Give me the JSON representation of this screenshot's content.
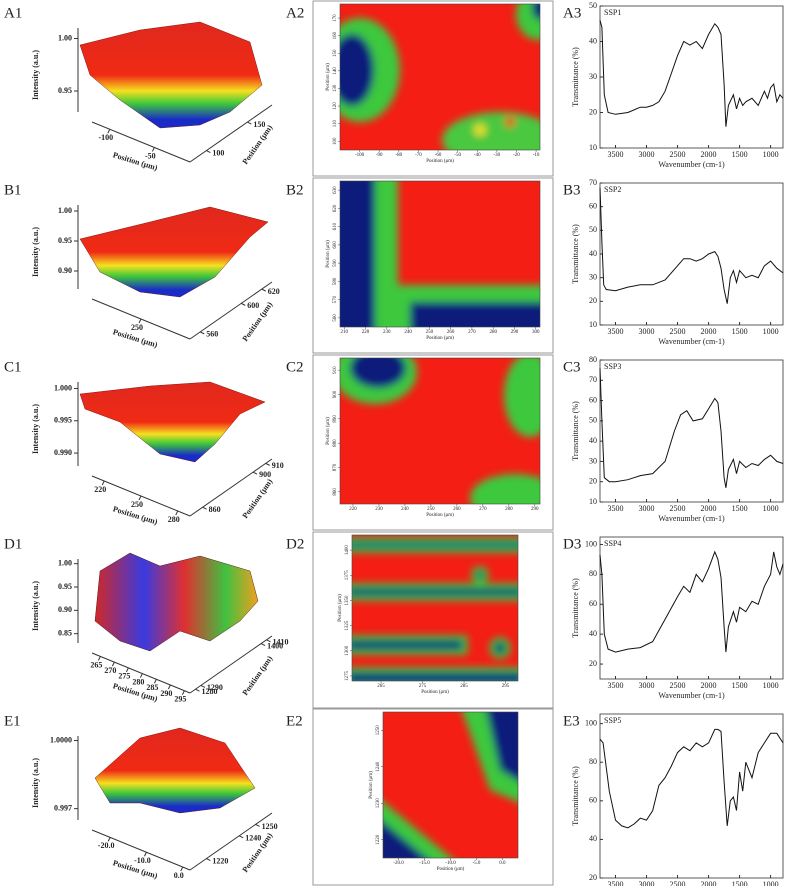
{
  "chart_data": [
    {
      "type": "surface",
      "label": "A1",
      "zlabel": "Intensity (a.u.)",
      "xlabel": "Position (μm)",
      "ylabel": "Position (μm)",
      "zlim": [
        0.93,
        1.01
      ],
      "zticks": [
        0.95,
        {
          "value": 1,
          "label": "1.00"
        }
      ],
      "xlim": [
        -120,
        -10
      ],
      "xticks": [
        -100,
        -50
      ],
      "ylim": [
        80,
        180
      ],
      "yticks": [
        100,
        150
      ]
    },
    {
      "type": "heatmap",
      "label": "A2",
      "xlabel": "Position (μm)",
      "ylabel": "Position (μm)",
      "xlim": [
        -110,
        -8
      ],
      "xticks": [
        -100,
        -90,
        -80,
        -70,
        -60,
        -50,
        -40,
        -30,
        -20,
        -10
      ],
      "ylim": [
        95,
        178
      ],
      "yticks": [
        100,
        110,
        120,
        130,
        140,
        150,
        160,
        170
      ]
    },
    {
      "type": "line",
      "label": "A3",
      "title": "SSP1",
      "xlabel": "Wavenumber (cm-1)",
      "ylabel": "Transmittance (%)",
      "xlim": [
        3750,
        800
      ],
      "xticks": [
        3500,
        3000,
        2500,
        2000,
        1500,
        1000
      ],
      "ylim": [
        10,
        50
      ],
      "yticks": [
        10,
        20,
        30,
        40,
        50
      ],
      "x": [
        3750,
        3720,
        3680,
        3620,
        3500,
        3300,
        3100,
        3000,
        2900,
        2800,
        2700,
        2600,
        2500,
        2400,
        2300,
        2200,
        2100,
        2000,
        1900,
        1850,
        1800,
        1750,
        1720,
        1680,
        1600,
        1550,
        1500,
        1450,
        1400,
        1300,
        1200,
        1100,
        1050,
        1000,
        950,
        900,
        850,
        800
      ],
      "values": [
        46,
        44,
        25,
        20,
        19.5,
        20,
        21.5,
        21.5,
        22,
        23,
        26,
        31,
        36,
        40,
        39,
        40,
        38,
        42,
        45,
        44,
        42,
        28,
        16,
        22,
        25,
        21,
        24,
        22,
        23,
        24,
        22,
        26,
        24,
        27,
        28,
        23,
        25,
        24
      ]
    },
    {
      "type": "surface",
      "label": "B1",
      "zlabel": "Intensity (a.u.)",
      "xlabel": "Position (μm)",
      "ylabel": "Position (μm)",
      "zlim": [
        0.87,
        1.01
      ],
      "zticks": [
        {
          "value": 0.9,
          "label": "0.90"
        },
        0.95,
        {
          "value": 1,
          "label": "1.00"
        }
      ],
      "xlim": [
        200,
        300
      ],
      "xticks": [
        250
      ],
      "ylim": [
        550,
        630
      ],
      "yticks": [
        560,
        600,
        620
      ]
    },
    {
      "type": "heatmap",
      "label": "B2",
      "xlabel": "Position (μm)",
      "ylabel": "Position (μm)",
      "xlim": [
        208,
        302
      ],
      "xticks": [
        210,
        220,
        230,
        240,
        250,
        260,
        270,
        280,
        290,
        300
      ],
      "ylim": [
        555,
        635
      ],
      "yticks": [
        560,
        570,
        580,
        590,
        600,
        610,
        620,
        630
      ]
    },
    {
      "type": "line",
      "label": "B3",
      "title": "SSP2",
      "xlabel": "Wavenumber (cm-1)",
      "ylabel": "Transmittance (%)",
      "xlim": [
        3750,
        800
      ],
      "xticks": [
        3500,
        3000,
        2500,
        2000,
        1500,
        1000
      ],
      "ylim": [
        10,
        70
      ],
      "yticks": [
        10,
        20,
        30,
        40,
        50,
        60,
        70
      ],
      "x": [
        3750,
        3720,
        3690,
        3650,
        3500,
        3300,
        3100,
        2900,
        2700,
        2500,
        2400,
        2300,
        2200,
        2100,
        2000,
        1900,
        1850,
        1800,
        1750,
        1700,
        1650,
        1600,
        1550,
        1500,
        1400,
        1300,
        1200,
        1100,
        1000,
        900,
        800
      ],
      "values": [
        68,
        45,
        27,
        25,
        24.5,
        26,
        27,
        27,
        29,
        35,
        38,
        38,
        37,
        38,
        40,
        41,
        39,
        34,
        25,
        19,
        30,
        33,
        28,
        33,
        30,
        31,
        30,
        35,
        37,
        34,
        32
      ]
    },
    {
      "type": "surface",
      "label": "C1",
      "zlabel": "Intensity (a.u.)",
      "xlabel": "Position (μm)",
      "ylabel": "Position (μm)",
      "zlim": [
        0.988,
        1.001
      ],
      "zticks": [
        {
          "value": 0.99,
          "label": "0.990"
        },
        0.995,
        {
          "value": 1,
          "label": "1.000"
        }
      ],
      "xlim": [
        210,
        290
      ],
      "xticks": [
        220,
        250,
        280
      ],
      "ylim": [
        850,
        915
      ],
      "yticks": [
        860,
        900,
        910
      ]
    },
    {
      "type": "heatmap",
      "label": "C2",
      "xlabel": "Position (μm)",
      "ylabel": "Position (μm)",
      "xlim": [
        215,
        292
      ],
      "xticks": [
        220,
        230,
        240,
        250,
        260,
        270,
        280,
        290
      ],
      "ylim": [
        855,
        915
      ],
      "yticks": [
        860,
        870,
        880,
        890,
        900,
        910
      ]
    },
    {
      "type": "line",
      "label": "C3",
      "title": "SSP3",
      "xlabel": "Wavenumber (cm-1)",
      "ylabel": "Transmittance (%)",
      "xlim": [
        3750,
        800
      ],
      "xticks": [
        3500,
        3000,
        2500,
        2000,
        1500,
        1000
      ],
      "ylim": [
        10,
        80
      ],
      "yticks": [
        10,
        20,
        30,
        40,
        50,
        60,
        70,
        80
      ],
      "x": [
        3750,
        3720,
        3680,
        3600,
        3500,
        3300,
        3100,
        2900,
        2700,
        2550,
        2450,
        2350,
        2250,
        2100,
        2000,
        1900,
        1850,
        1800,
        1750,
        1720,
        1680,
        1600,
        1550,
        1500,
        1400,
        1300,
        1200,
        1100,
        1000,
        900,
        800
      ],
      "values": [
        76,
        50,
        22,
        20,
        20,
        21,
        23,
        24,
        30,
        45,
        53,
        55,
        50,
        51,
        56,
        61,
        59,
        45,
        22,
        17,
        26,
        31,
        24,
        30,
        27,
        29,
        28,
        31,
        33,
        30,
        29
      ]
    },
    {
      "type": "surface",
      "label": "D1",
      "zlabel": "Intensity (a.u.)",
      "xlabel": "Position (μm)",
      "ylabel": "Position (μm)",
      "zlim": [
        0.83,
        1.01
      ],
      "zticks": [
        0.85,
        {
          "value": 0.9,
          "label": "0.90"
        },
        0.95,
        {
          "value": 1,
          "label": "1.00"
        }
      ],
      "xlim": [
        262,
        297
      ],
      "xticks": [
        265,
        270,
        275,
        280,
        285,
        290,
        295
      ],
      "ylim": [
        1270,
        1420
      ],
      "yticks": [
        1280,
        1290,
        1400,
        1410
      ]
    },
    {
      "type": "heatmap",
      "label": "D2",
      "xlabel": "Position (μm)",
      "ylabel": "Position (μm)",
      "xlim": [
        258,
        298
      ],
      "xticks": [
        265,
        275,
        285,
        295
      ],
      "ylim": [
        1270,
        1415
      ],
      "yticks": [
        1275,
        1300,
        1325,
        1350,
        1375,
        1400
      ]
    },
    {
      "type": "line",
      "label": "D3",
      "title": "SSP4",
      "xlabel": "Wavenumber (cm-1)",
      "ylabel": "Transmittance (%)",
      "xlim": [
        3750,
        800
      ],
      "xticks": [
        3500,
        3000,
        2500,
        2000,
        1500,
        1000
      ],
      "ylim": [
        10,
        105
      ],
      "yticks": [
        20,
        40,
        60,
        80,
        100
      ],
      "x": [
        3750,
        3720,
        3680,
        3620,
        3500,
        3300,
        3100,
        2900,
        2700,
        2500,
        2400,
        2300,
        2200,
        2100,
        2000,
        1900,
        1850,
        1800,
        1750,
        1720,
        1680,
        1600,
        1550,
        1500,
        1400,
        1300,
        1200,
        1100,
        1000,
        950,
        900,
        850,
        800
      ],
      "values": [
        93,
        80,
        40,
        30,
        28,
        30,
        31,
        35,
        50,
        65,
        72,
        68,
        80,
        75,
        84,
        95,
        90,
        78,
        45,
        28,
        45,
        55,
        48,
        58,
        55,
        62,
        60,
        72,
        80,
        95,
        85,
        80,
        87
      ]
    },
    {
      "type": "surface",
      "label": "E1",
      "zlabel": "Intensity (a.u.)",
      "xlabel": "Position (μm)",
      "ylabel": "Position (μm)",
      "zlim": [
        0.9965,
        1.0002
      ],
      "zticks": [
        0.997,
        {
          "value": 1,
          "label": "1.0000"
        }
      ],
      "xlim": [
        -25,
        2
      ],
      "xticks": [
        {
          "value": -20,
          "label": "-20.0"
        },
        {
          "value": -10,
          "label": "-10.0"
        },
        {
          "value": 0,
          "label": "0.0"
        }
      ],
      "ylim": [
        1210,
        1260
      ],
      "yticks": [
        1220,
        1240,
        1250
      ]
    },
    {
      "type": "heatmap",
      "label": "E2",
      "xlabel": "Position (μm)",
      "ylabel": "Position (μm)",
      "xlim": [
        -23,
        3
      ],
      "xticks": [
        {
          "value": -20,
          "label": "-20.0"
        },
        {
          "value": -15,
          "label": "-15.0"
        },
        {
          "value": -10,
          "label": "-10.0"
        },
        {
          "value": -5,
          "label": "-5.0"
        },
        {
          "value": 0,
          "label": "0.0"
        }
      ],
      "ylim": [
        1215,
        1255
      ],
      "yticks": [
        1220,
        1230,
        1240,
        1250
      ]
    },
    {
      "type": "line",
      "label": "E3",
      "title": "SSP5",
      "xlabel": "Wavenumber (cm-1)",
      "ylabel": "Transmittance (%)",
      "xlim": [
        3750,
        800
      ],
      "xticks": [
        3500,
        3000,
        2500,
        2000,
        1500,
        1000
      ],
      "ylim": [
        20,
        105
      ],
      "yticks": [
        20,
        40,
        60,
        80,
        100
      ],
      "x": [
        3750,
        3700,
        3600,
        3500,
        3400,
        3300,
        3200,
        3100,
        3000,
        2900,
        2800,
        2700,
        2600,
        2500,
        2400,
        2300,
        2200,
        2100,
        2000,
        1900,
        1850,
        1800,
        1750,
        1700,
        1650,
        1600,
        1550,
        1500,
        1450,
        1400,
        1300,
        1200,
        1100,
        1000,
        900,
        800
      ],
      "values": [
        92,
        90,
        65,
        50,
        47,
        46,
        48,
        51,
        50,
        55,
        68,
        72,
        78,
        85,
        88,
        86,
        90,
        88,
        90,
        97,
        97,
        96,
        70,
        47,
        60,
        62,
        55,
        75,
        65,
        80,
        72,
        85,
        90,
        95,
        95,
        90
      ]
    }
  ]
}
